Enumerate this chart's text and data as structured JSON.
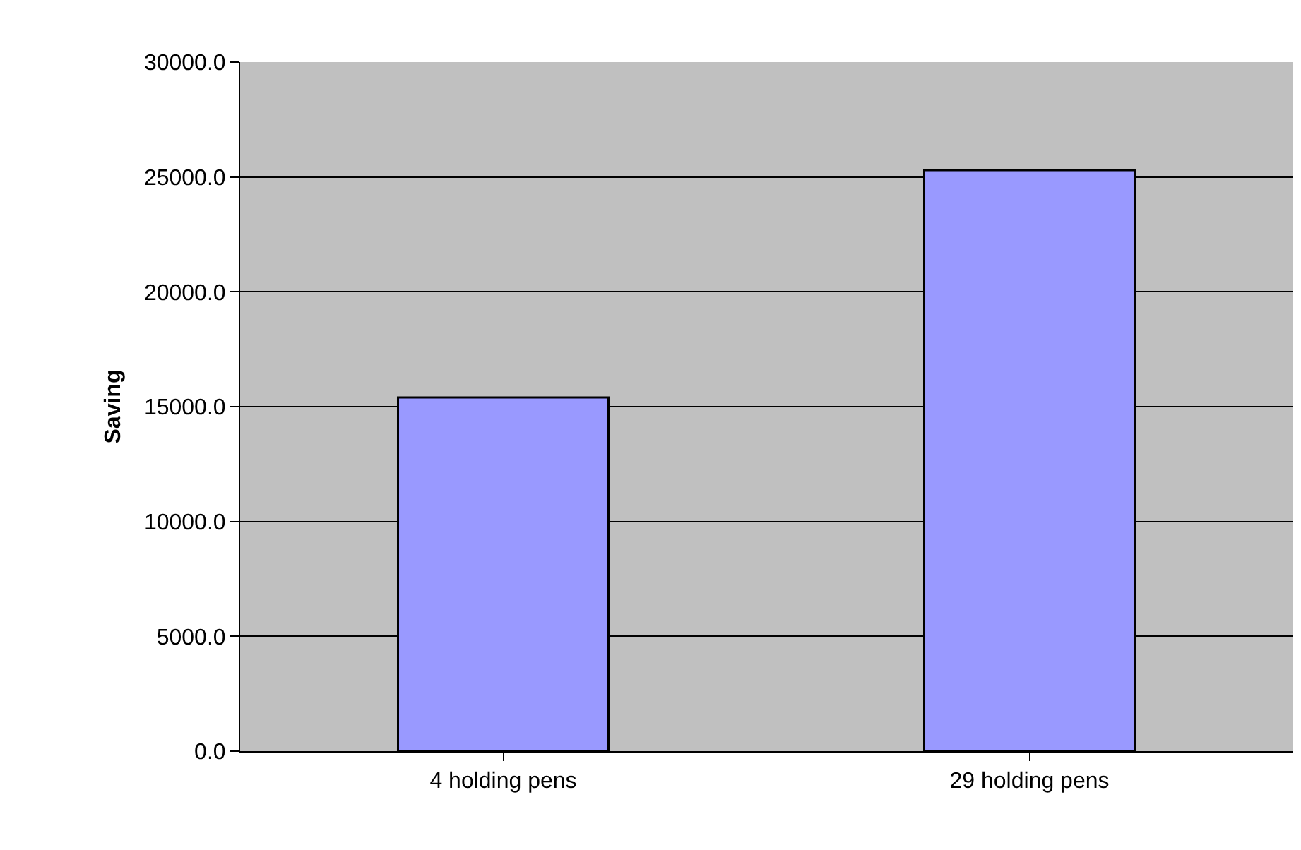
{
  "chart_data": {
    "type": "bar",
    "ylabel": "Saving",
    "categories": [
      "4 holding pens",
      "29 holding pens"
    ],
    "values": [
      15400,
      25300
    ],
    "color": "#9999ff",
    "ylim": [
      0,
      30000
    ],
    "yticks": [
      {
        "value": 0,
        "label": "0.0"
      },
      {
        "value": 5000,
        "label": "5000.0"
      },
      {
        "value": 10000,
        "label": "10000.0"
      },
      {
        "value": 15000,
        "label": "15000.0"
      },
      {
        "value": 20000,
        "label": "20000.0"
      },
      {
        "value": 25000,
        "label": "25000.0"
      },
      {
        "value": 30000,
        "label": "30000.0"
      }
    ],
    "grid": "y"
  }
}
